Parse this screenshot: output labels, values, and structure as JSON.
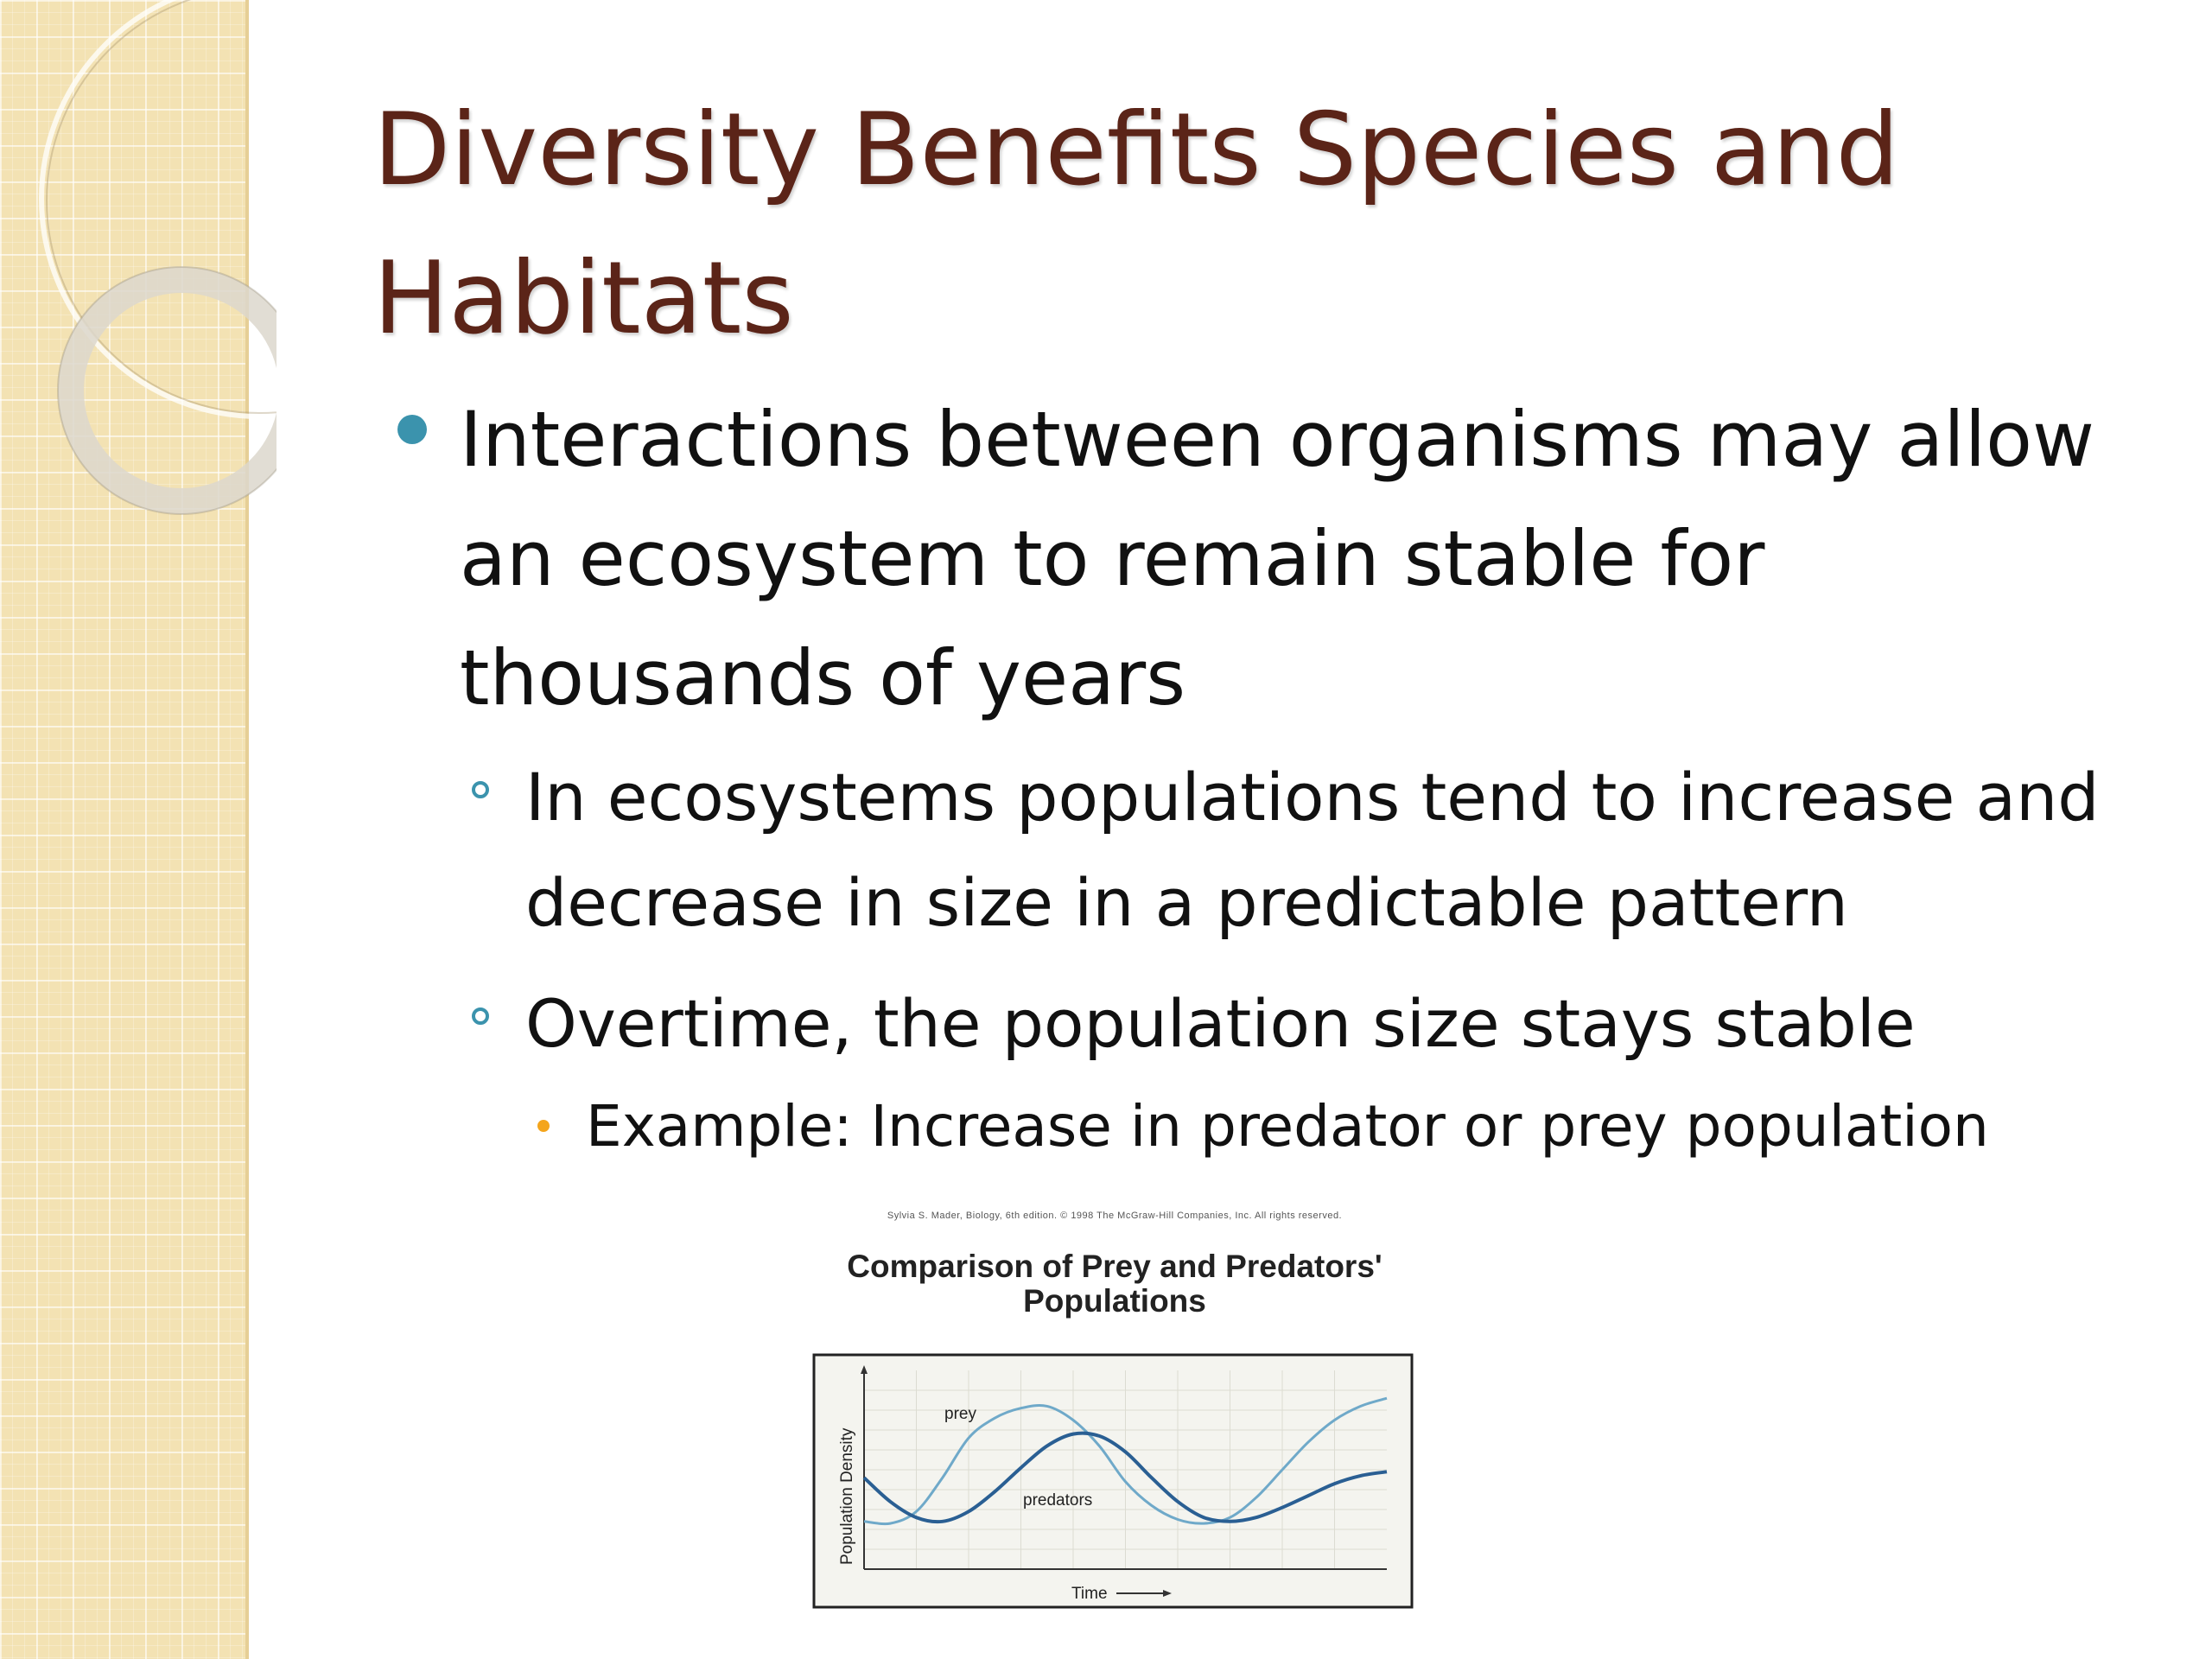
{
  "slide": {
    "title": "Diversity Benefits Species and Habitats",
    "bullets": [
      {
        "text": "Interactions between organisms may allow an ecosystem to remain stable for thousands of years",
        "sub": [
          {
            "text": "In ecosystems populations tend to increase and decrease in size in a predictable pattern"
          },
          {
            "text": "Overtime, the population size stays stable",
            "sub": [
              {
                "text": "Example: Increase in predator or prey population"
              }
            ]
          }
        ]
      }
    ],
    "colors": {
      "title": "#5b2418",
      "bullet_primary": "#3b93ad",
      "bullet_tertiary": "#f4a51c",
      "sidebar": "#f3e2b3"
    }
  },
  "figure": {
    "credit": "Sylvia S. Mader, Biology, 6th edition. © 1998 The McGraw-Hill Companies, Inc. All rights reserved.",
    "chart_data": {
      "type": "line",
      "title": "Comparison of Prey and Predators' Populations",
      "xlabel": "Time",
      "ylabel": "Population Density",
      "xlim": [
        0,
        10
      ],
      "ylim": [
        0,
        10
      ],
      "grid": true,
      "annotations": [
        "prey",
        "predators"
      ],
      "series": [
        {
          "color": "#6fa9c9",
          "x": [
            0,
            0.5,
            1,
            1.5,
            2,
            2.5,
            3,
            3.5,
            4,
            4.5,
            5,
            5.5,
            6,
            6.5,
            7,
            7.5,
            8,
            8.5,
            9,
            9.5,
            10
          ],
          "y": [
            2.4,
            2.3,
            2.9,
            4.6,
            6.6,
            7.6,
            8.1,
            8.2,
            7.5,
            6.2,
            4.4,
            3.2,
            2.5,
            2.3,
            2.6,
            3.6,
            5,
            6.4,
            7.5,
            8.2,
            8.6
          ]
        },
        {
          "color": "#2a5f93",
          "x": [
            0,
            0.5,
            1,
            1.5,
            2,
            2.5,
            3,
            3.5,
            4,
            4.5,
            5,
            5.5,
            6,
            6.5,
            7,
            7.5,
            8,
            8.5,
            9,
            9.5,
            10
          ],
          "y": [
            4.6,
            3.4,
            2.6,
            2.4,
            2.9,
            3.9,
            5.1,
            6.2,
            6.8,
            6.7,
            5.9,
            4.6,
            3.4,
            2.6,
            2.4,
            2.6,
            3.1,
            3.7,
            4.3,
            4.7,
            4.9
          ]
        }
      ]
    }
  }
}
